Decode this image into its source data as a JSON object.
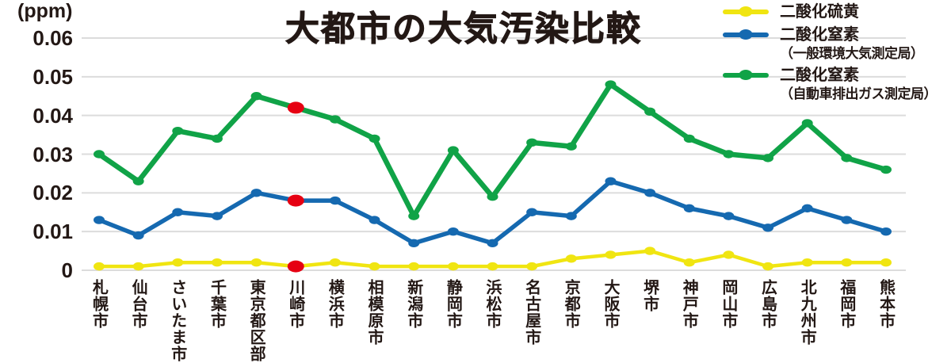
{
  "chart_data": {
    "type": "line",
    "title": "大都市の大気汚染比較",
    "ylabel": "(ppm)",
    "xlabel": "",
    "ylim": [
      0,
      0.06
    ],
    "y_ticks": [
      "0",
      "0.01",
      "0.02",
      "0.03",
      "0.04",
      "0.05",
      "0.06"
    ],
    "grid": true,
    "legend_position": "top-right",
    "categories": [
      "札幌市",
      "仙台市",
      "さいたま市",
      "千葉市",
      "東京都区部",
      "川崎市",
      "横浜市",
      "相模原市",
      "新潟市",
      "静岡市",
      "浜松市",
      "名古屋市",
      "京都市",
      "大阪市",
      "堺市",
      "神戸市",
      "岡山市",
      "広島市",
      "北九州市",
      "福岡市",
      "熊本市"
    ],
    "series": [
      {
        "name": "二酸化硫黄",
        "subtitle": "",
        "color": "#f0e511",
        "values": [
          0.001,
          0.001,
          0.002,
          0.002,
          0.002,
          0.001,
          0.002,
          0.001,
          0.001,
          0.001,
          0.001,
          0.001,
          0.003,
          0.004,
          0.005,
          0.002,
          0.004,
          0.001,
          0.002,
          0.002,
          0.002
        ]
      },
      {
        "name": "二酸化窒素",
        "subtitle": "（一般環境大気測定局）",
        "color": "#1569b0",
        "values": [
          0.013,
          0.009,
          0.015,
          0.014,
          0.02,
          0.018,
          0.018,
          0.013,
          0.007,
          0.01,
          0.007,
          0.015,
          0.014,
          0.023,
          0.02,
          0.016,
          0.014,
          0.011,
          0.016,
          0.013,
          0.01
        ]
      },
      {
        "name": "二酸化窒素",
        "subtitle": "（自動車排出ガス測定局）",
        "color": "#10a347",
        "values": [
          0.03,
          0.023,
          0.036,
          0.034,
          0.045,
          0.042,
          0.039,
          0.034,
          0.014,
          0.031,
          0.019,
          0.033,
          0.032,
          0.048,
          0.041,
          0.034,
          0.03,
          0.029,
          0.038,
          0.029,
          0.026
        ]
      }
    ],
    "highlight": {
      "category": "川崎市",
      "color": "#e60012"
    },
    "colors": {
      "grid": "#dcdcdc",
      "text": "#231815"
    }
  }
}
